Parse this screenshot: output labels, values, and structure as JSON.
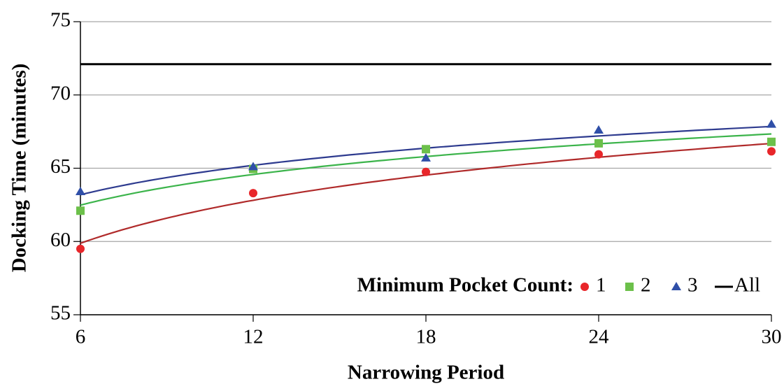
{
  "chart_data": {
    "type": "scatter",
    "x_label": "Narrowing Period",
    "y_label": "Docking Time (minutes)",
    "legend_title": "Minimum Pocket Count:",
    "x": [
      6,
      12,
      18,
      24,
      30
    ],
    "xlim": [
      6,
      30
    ],
    "xticks": [
      6,
      12,
      18,
      24,
      30
    ],
    "ylim": [
      55,
      75
    ],
    "yticks": [
      55,
      60,
      65,
      70,
      75
    ],
    "grid": true,
    "legend": "bottom-right",
    "series": [
      {
        "name": "1",
        "color": "#e8262a",
        "marker": "circle",
        "trendline": "log",
        "trendline_color": "#b02a2a",
        "values": [
          59.5,
          63.3,
          64.75,
          65.95,
          66.15
        ]
      },
      {
        "name": "2",
        "color": "#6cc04a",
        "marker": "square",
        "trendline": "log",
        "trendline_color": "#3cb44b",
        "values": [
          62.1,
          64.95,
          66.3,
          66.7,
          66.8
        ]
      },
      {
        "name": "3",
        "color": "#2f4fa8",
        "marker": "triangle",
        "trendline": "log",
        "trendline_color": "#2e3b8f",
        "values": [
          63.4,
          65.1,
          65.7,
          67.6,
          68.0
        ]
      },
      {
        "name": "All",
        "color": "#000000",
        "marker": "line",
        "values": [
          72.1,
          72.1,
          72.1,
          72.1,
          72.1
        ]
      }
    ]
  }
}
